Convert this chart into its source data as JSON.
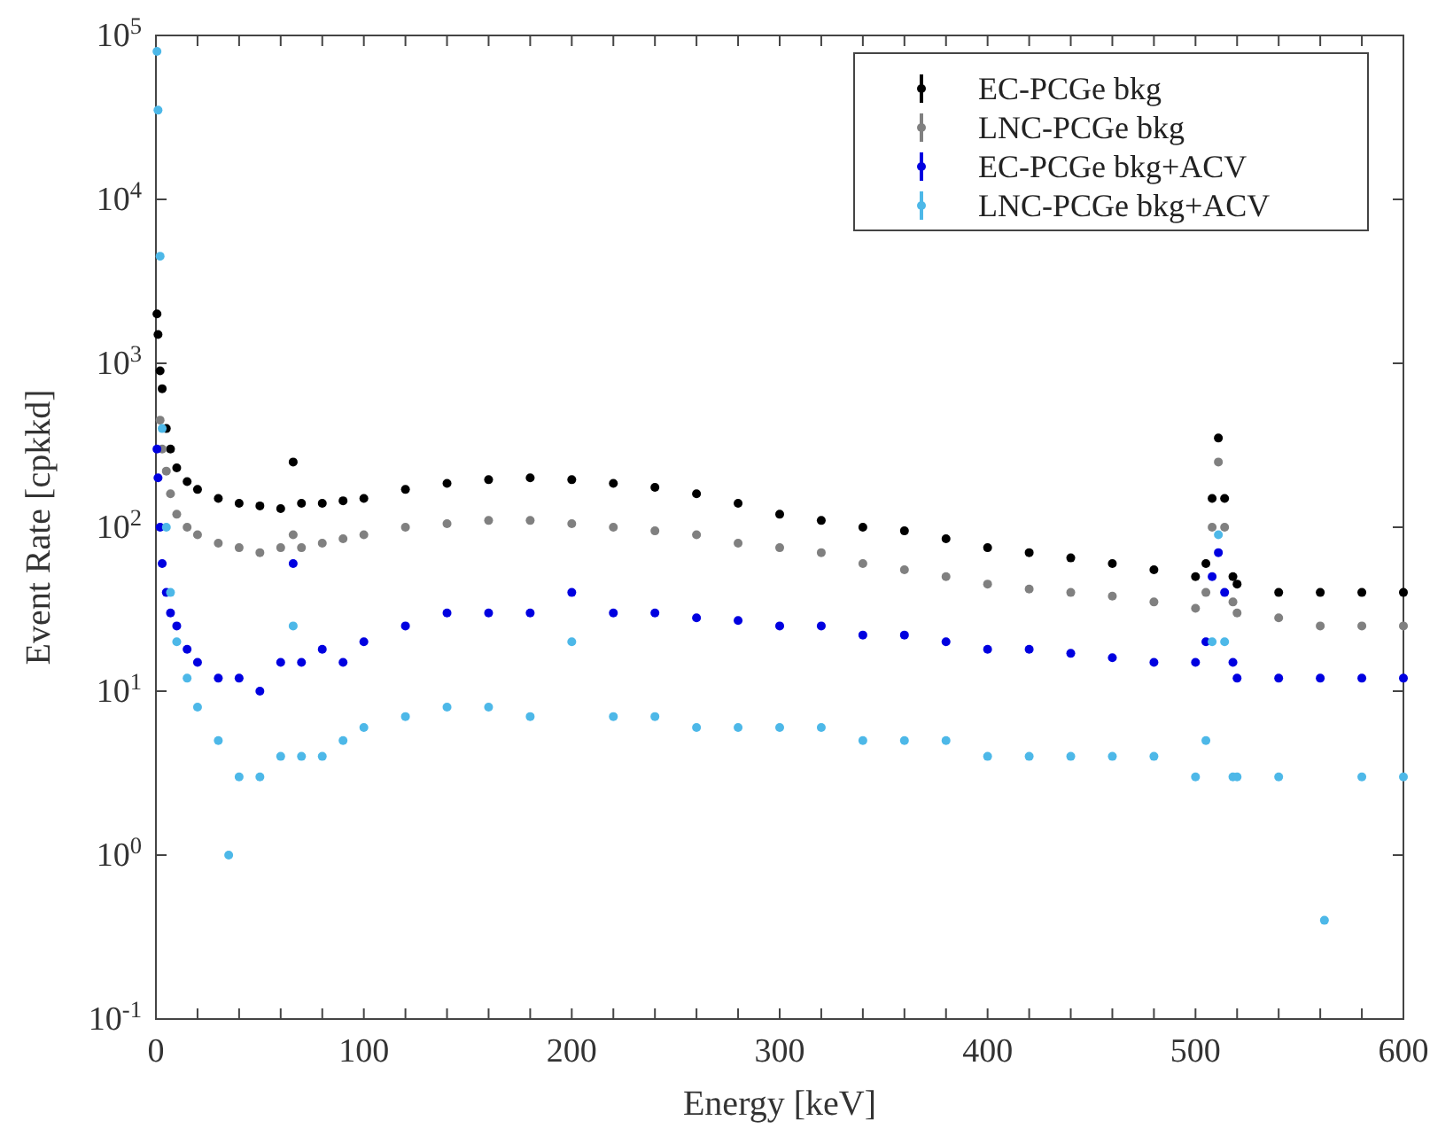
{
  "chart_data": {
    "type": "scatter",
    "xlabel": "Energy [keV]",
    "ylabel": "Event Rate [cpkkd]",
    "log": "y",
    "legend": "top right",
    "marker": "circle",
    "grid": false,
    "xlim": [
      0,
      600
    ],
    "xticks": [
      0,
      {
        "value": 20,
        "label": null
      },
      {
        "value": 40,
        "label": null
      },
      {
        "value": 60,
        "label": null
      },
      {
        "value": 80,
        "label": null
      },
      100,
      {
        "value": 120,
        "label": null
      },
      {
        "value": 140,
        "label": null
      },
      {
        "value": 160,
        "label": null
      },
      {
        "value": 180,
        "label": null
      },
      200,
      {
        "value": 220,
        "label": null
      },
      {
        "value": 240,
        "label": null
      },
      {
        "value": 260,
        "label": null
      },
      {
        "value": 280,
        "label": null
      },
      300,
      {
        "value": 320,
        "label": null
      },
      {
        "value": 340,
        "label": null
      },
      {
        "value": 360,
        "label": null
      },
      {
        "value": 380,
        "label": null
      },
      400,
      {
        "value": 420,
        "label": null
      },
      {
        "value": 440,
        "label": null
      },
      {
        "value": 460,
        "label": null
      },
      {
        "value": 480,
        "label": null
      },
      500,
      {
        "value": 520,
        "label": null
      },
      {
        "value": 540,
        "label": null
      },
      {
        "value": 560,
        "label": null
      },
      {
        "value": 580,
        "label": null
      },
      600
    ],
    "ylim": [
      0.1,
      100000
    ],
    "yticks": [
      {
        "value": 0.1,
        "label": "10$^{-1}$"
      },
      {
        "value": 1,
        "label": "10$^{0}$"
      },
      {
        "value": 10,
        "label": "10$^{1}$"
      },
      {
        "value": 100,
        "label": "10$^{2}$"
      },
      {
        "value": 1000,
        "label": "10$^{3}$"
      },
      {
        "value": 10000,
        "label": "10$^{4}$"
      },
      {
        "value": 100000,
        "label": "10$^{5}$"
      }
    ],
    "series": [
      {
        "name": "EC-PCGe bkg",
        "color": "#000000",
        "x": [
          0.5,
          1,
          2,
          3,
          5,
          7,
          10,
          15,
          20,
          30,
          40,
          50,
          60,
          66,
          70,
          80,
          90,
          100,
          120,
          140,
          160,
          180,
          200,
          220,
          240,
          260,
          280,
          300,
          320,
          340,
          360,
          380,
          400,
          420,
          440,
          460,
          480,
          500,
          505,
          508,
          511,
          514,
          518,
          520,
          540,
          560,
          580,
          600
        ],
        "values": [
          2000,
          1500,
          900,
          700,
          400,
          300,
          230,
          190,
          170,
          150,
          140,
          135,
          130,
          250,
          140,
          140,
          145,
          150,
          170,
          185,
          195,
          200,
          195,
          185,
          175,
          160,
          140,
          120,
          110,
          100,
          95,
          85,
          75,
          70,
          65,
          60,
          55,
          50,
          60,
          150,
          350,
          150,
          50,
          45,
          40,
          40,
          40,
          40
        ]
      },
      {
        "name": "LNC-PCGe bkg",
        "color": "#808080",
        "x": [
          2,
          3,
          5,
          7,
          10,
          15,
          20,
          30,
          40,
          50,
          60,
          66,
          70,
          80,
          90,
          100,
          120,
          140,
          160,
          180,
          200,
          220,
          240,
          260,
          280,
          300,
          320,
          340,
          360,
          380,
          400,
          420,
          440,
          460,
          480,
          500,
          505,
          508,
          511,
          514,
          518,
          520,
          540,
          560,
          580,
          600
        ],
        "values": [
          450,
          300,
          220,
          160,
          120,
          100,
          90,
          80,
          75,
          70,
          75,
          90,
          75,
          80,
          85,
          90,
          100,
          105,
          110,
          110,
          105,
          100,
          95,
          90,
          80,
          75,
          70,
          60,
          55,
          50,
          45,
          42,
          40,
          38,
          35,
          32,
          40,
          100,
          250,
          100,
          35,
          30,
          28,
          25,
          25,
          25
        ]
      },
      {
        "name": "EC-PCGe bkg+ACV",
        "color": "#0000e0",
        "x": [
          0.5,
          1,
          2,
          3,
          5,
          7,
          10,
          15,
          20,
          30,
          40,
          50,
          60,
          66,
          70,
          80,
          90,
          100,
          120,
          140,
          160,
          180,
          200,
          220,
          240,
          260,
          280,
          300,
          320,
          340,
          360,
          380,
          400,
          420,
          440,
          460,
          480,
          500,
          505,
          508,
          511,
          514,
          518,
          520,
          540,
          560,
          580,
          600
        ],
        "values": [
          300,
          200,
          100,
          60,
          40,
          30,
          25,
          18,
          15,
          12,
          12,
          10,
          15,
          60,
          15,
          18,
          15,
          20,
          25,
          30,
          30,
          30,
          40,
          30,
          30,
          28,
          27,
          25,
          25,
          22,
          22,
          20,
          18,
          18,
          17,
          16,
          15,
          15,
          20,
          50,
          70,
          40,
          15,
          12,
          12,
          12,
          12,
          12
        ]
      },
      {
        "name": "LNC-PCGe bkg+ACV",
        "color": "#4db8e8",
        "x": [
          0.5,
          1,
          2,
          3,
          5,
          7,
          10,
          15,
          20,
          30,
          35,
          40,
          50,
          60,
          66,
          70,
          80,
          90,
          100,
          120,
          140,
          160,
          180,
          200,
          220,
          240,
          260,
          280,
          300,
          320,
          340,
          360,
          380,
          400,
          420,
          440,
          460,
          480,
          500,
          505,
          508,
          511,
          514,
          518,
          520,
          540,
          562,
          580,
          600
        ],
        "values": [
          80000,
          35000,
          4500,
          400,
          100,
          40,
          20,
          12,
          8,
          5,
          1,
          3,
          3,
          4,
          25,
          4,
          4,
          5,
          6,
          7,
          8,
          8,
          7,
          20,
          7,
          7,
          6,
          6,
          6,
          6,
          5,
          5,
          5,
          4,
          4,
          4,
          4,
          4,
          3,
          5,
          20,
          90,
          20,
          3,
          3,
          3,
          0.4,
          3,
          3
        ]
      }
    ]
  }
}
